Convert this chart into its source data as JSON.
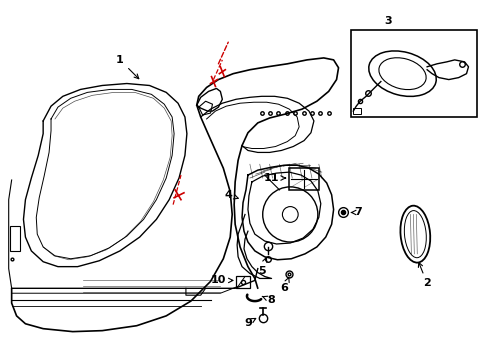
{
  "background_color": "#ffffff",
  "line_color": "#000000",
  "red_line_color": "#cc0000",
  "figsize": [
    4.89,
    3.6
  ],
  "dpi": 100
}
